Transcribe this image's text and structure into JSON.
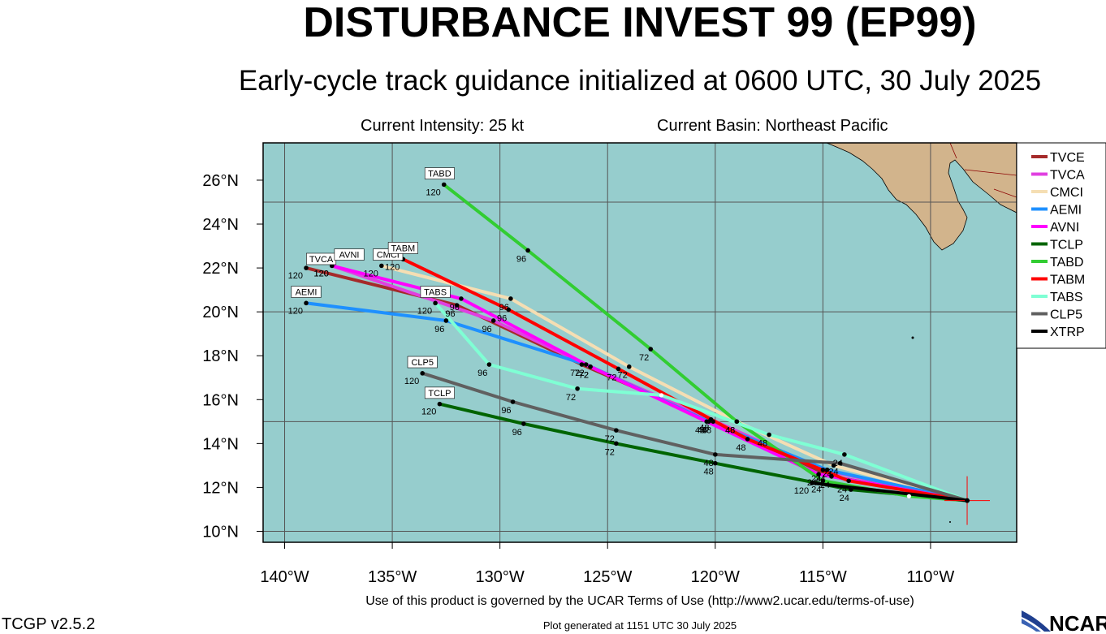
{
  "header": {
    "title": "DISTURBANCE INVEST 99 (EP99)",
    "subtitle": "Early-cycle track guidance initialized at 0600 UTC, 30 July 2025",
    "intensity": "Current Intensity: 25 kt",
    "basin": "Current Basin: Northeast Pacific"
  },
  "footer": {
    "terms": "Use of this product is governed by the UCAR Terms of Use (http://www2.ucar.edu/terms-of-use)",
    "version": "TCGP v2.5.2",
    "generated": "Plot generated at 1151 UTC  30 July 2025",
    "logo_text": "NCAR"
  },
  "colors": {
    "ocean": "#96cdcd",
    "land": "#d2b48c",
    "grid": "#555555"
  },
  "chart_data": {
    "type": "map-track",
    "lon_range": [
      -141,
      -106
    ],
    "lat_range": [
      9.5,
      27.7
    ],
    "x_ticks": [
      {
        "lon": -140,
        "label": "140°W"
      },
      {
        "lon": -135,
        "label": "135°W"
      },
      {
        "lon": -130,
        "label": "130°W"
      },
      {
        "lon": -125,
        "label": "125°W"
      },
      {
        "lon": -120,
        "label": "120°W"
      },
      {
        "lon": -115,
        "label": "115°W"
      },
      {
        "lon": -110,
        "label": "110°W"
      }
    ],
    "y_ticks": [
      {
        "lat": 10,
        "label": "10°N"
      },
      {
        "lat": 12,
        "label": "12°N"
      },
      {
        "lat": 14,
        "label": "14°N"
      },
      {
        "lat": 16,
        "label": "16°N"
      },
      {
        "lat": 18,
        "label": "18°N"
      },
      {
        "lat": 20,
        "label": "20°N"
      },
      {
        "lat": 22,
        "label": "22°N"
      },
      {
        "lat": 24,
        "label": "24°N"
      },
      {
        "lat": 26,
        "label": "26°N"
      }
    ],
    "grid_lons": [
      -140,
      -135,
      -130,
      -125,
      -120,
      -115,
      -110
    ],
    "grid_lats": [
      10,
      15,
      20,
      25
    ],
    "legend_position": "right",
    "current_position": {
      "lon": -108.3,
      "lat": 11.4
    },
    "series": [
      {
        "name": "TVCE",
        "color": "#a52a2a",
        "points": [
          [
            -108.3,
            11.4
          ],
          [
            -114.6,
            12.5
          ],
          [
            -120.1,
            15.0
          ],
          [
            -126.2,
            17.6
          ],
          [
            -132.0,
            20.3
          ],
          [
            -139.0,
            22.0
          ]
        ],
        "markers": [
          {
            "lon": -114.6,
            "lat": 12.5,
            "label": "24"
          },
          {
            "lon": -120.1,
            "lat": 15.0,
            "label": "48"
          },
          {
            "lon": -126.2,
            "lat": 17.6,
            "label": "72"
          },
          {
            "lon": -132.0,
            "lat": 20.3,
            "label": "96"
          }
        ],
        "end_label": "TVCA",
        "end_label_pos": [
          -138.3,
          22.3
        ]
      },
      {
        "name": "TVCA",
        "color": "#e040e0",
        "points": [
          [
            -108.3,
            11.4
          ],
          [
            -115.0,
            12.8
          ],
          [
            -120.2,
            15.1
          ],
          [
            -125.8,
            17.5
          ],
          [
            -130.3,
            19.6
          ],
          [
            -137.8,
            22.1
          ]
        ],
        "markers": [
          {
            "lon": -115.0,
            "lat": 12.8,
            "label": "24"
          },
          {
            "lon": -120.2,
            "lat": 15.1,
            "label": "48"
          },
          {
            "lon": -125.8,
            "lat": 17.5,
            "label": "72"
          },
          {
            "lon": -130.3,
            "lat": 19.6,
            "label": "96"
          }
        ],
        "end_label": "",
        "end_label_pos": [
          -137.8,
          22.1
        ]
      },
      {
        "name": "CMCI",
        "color": "#f5deb3",
        "points": [
          [
            -108.3,
            11.4
          ],
          [
            -114.5,
            13.0
          ],
          [
            -119.0,
            15.0
          ],
          [
            -124.0,
            17.5
          ],
          [
            -129.5,
            20.6
          ],
          [
            -135.5,
            22.1
          ]
        ],
        "markers": [
          {
            "lon": -114.5,
            "lat": 13.0,
            "label": "24"
          },
          {
            "lon": -119.0,
            "lat": 15.0,
            "label": "48"
          },
          {
            "lon": -124.0,
            "lat": 17.5,
            "label": "72"
          },
          {
            "lon": -129.5,
            "lat": 20.6,
            "label": "96"
          }
        ],
        "end_label": "CMCI",
        "end_label_pos": [
          -135.2,
          22.5
        ]
      },
      {
        "name": "AEMI",
        "color": "#1e90ff",
        "points": [
          [
            -108.3,
            11.4
          ],
          [
            -114.8,
            12.8
          ],
          [
            -120.3,
            15.0
          ],
          [
            -126.0,
            17.6
          ],
          [
            -132.5,
            19.6
          ],
          [
            -139.0,
            20.4
          ]
        ],
        "markers": [
          {
            "lon": -114.8,
            "lat": 12.8,
            "label": "24"
          },
          {
            "lon": -120.3,
            "lat": 15.0,
            "label": "48"
          },
          {
            "lon": -126.0,
            "lat": 17.6,
            "label": "72"
          },
          {
            "lon": -132.5,
            "lat": 19.6,
            "label": "96"
          }
        ],
        "end_label": "AEMI",
        "end_label_pos": [
          -139.0,
          20.8
        ]
      },
      {
        "name": "AVNI",
        "color": "#ff00ff",
        "points": [
          [
            -108.3,
            11.4
          ],
          [
            -115.2,
            12.6
          ],
          [
            -120.4,
            15.0
          ],
          [
            -125.8,
            17.5
          ],
          [
            -131.8,
            20.6
          ],
          [
            -137.8,
            22.1
          ]
        ],
        "markers": [
          {
            "lon": -115.2,
            "lat": 12.6,
            "label": "24"
          },
          {
            "lon": -120.4,
            "lat": 15.0,
            "label": "48"
          },
          {
            "lon": -125.8,
            "lat": 17.5,
            "label": "72"
          },
          {
            "lon": -131.8,
            "lat": 20.6,
            "label": "96"
          }
        ],
        "end_label": "AVNI",
        "end_label_pos": [
          -137.0,
          22.5
        ]
      },
      {
        "name": "TCLP",
        "color": "#006400",
        "points": [
          [
            -108.3,
            11.4
          ],
          [
            -113.7,
            11.9
          ],
          [
            -120.0,
            13.1
          ],
          [
            -124.6,
            14.0
          ],
          [
            -128.9,
            14.9
          ],
          [
            -132.8,
            15.8
          ]
        ],
        "markers": [
          {
            "lon": -113.7,
            "lat": 11.9,
            "label": "24"
          },
          {
            "lon": -120.0,
            "lat": 13.1,
            "label": "48"
          },
          {
            "lon": -124.6,
            "lat": 14.0,
            "label": "72"
          },
          {
            "lon": -128.9,
            "lat": 14.9,
            "label": "96"
          }
        ],
        "end_label": "TCLP",
        "end_label_pos": [
          -132.8,
          16.2
        ]
      },
      {
        "name": "TABD",
        "color": "#32cd32",
        "points": [
          [
            -108.3,
            11.4
          ],
          [
            -111.0,
            11.6
          ],
          [
            -115.0,
            12.3
          ],
          [
            -119.0,
            15.0
          ],
          [
            -123.0,
            18.3
          ],
          [
            -128.7,
            22.8
          ],
          [
            -132.6,
            25.8
          ]
        ],
        "markers": [
          {
            "lon": -115.0,
            "lat": 12.3,
            "label": "24"
          },
          {
            "lon": -119.0,
            "lat": 15.0,
            "label": "48"
          },
          {
            "lon": -123.0,
            "lat": 18.3,
            "label": "72"
          },
          {
            "lon": -128.7,
            "lat": 22.8,
            "label": "96"
          }
        ],
        "end_label": "TABD",
        "end_label_pos": [
          -132.8,
          26.2
        ]
      },
      {
        "name": "TABM",
        "color": "#ff0000",
        "points": [
          [
            -108.3,
            11.4
          ],
          [
            -113.8,
            12.3
          ],
          [
            -118.5,
            14.2
          ],
          [
            -124.5,
            17.4
          ],
          [
            -129.6,
            20.1
          ],
          [
            -134.5,
            22.4
          ]
        ],
        "markers": [
          {
            "lon": -113.8,
            "lat": 12.3,
            "label": "24"
          },
          {
            "lon": -118.5,
            "lat": 14.2,
            "label": "48"
          },
          {
            "lon": -124.5,
            "lat": 17.4,
            "label": "72"
          },
          {
            "lon": -129.6,
            "lat": 20.1,
            "label": "96"
          }
        ],
        "end_label": "TABM",
        "end_label_pos": [
          -134.5,
          22.8
        ]
      },
      {
        "name": "TABS",
        "color": "#7fffd4",
        "points": [
          [
            -108.3,
            11.4
          ],
          [
            -114.0,
            13.5
          ],
          [
            -117.5,
            14.4
          ],
          [
            -122.5,
            16.2
          ],
          [
            -126.4,
            16.5
          ],
          [
            -130.5,
            17.6
          ],
          [
            -133.0,
            20.4
          ]
        ],
        "markers": [
          {
            "lon": -114.0,
            "lat": 13.5,
            "label": "24"
          },
          {
            "lon": -117.5,
            "lat": 14.4,
            "label": "48"
          },
          {
            "lon": -126.4,
            "lat": 16.5,
            "label": "72"
          },
          {
            "lon": -130.5,
            "lat": 17.6,
            "label": "96"
          }
        ],
        "end_label": "TABS",
        "end_label_pos": [
          -133.0,
          20.8
        ]
      },
      {
        "name": "CLP5",
        "color": "#606060",
        "points": [
          [
            -108.3,
            11.4
          ],
          [
            -114.2,
            13.1
          ],
          [
            -120.0,
            13.5
          ],
          [
            -124.6,
            14.6
          ],
          [
            -129.4,
            15.9
          ],
          [
            -133.6,
            17.2
          ]
        ],
        "markers": [
          {
            "lon": -114.2,
            "lat": 13.1,
            "label": "24"
          },
          {
            "lon": -120.0,
            "lat": 13.5,
            "label": "48"
          },
          {
            "lon": -124.6,
            "lat": 14.6,
            "label": "72"
          },
          {
            "lon": -129.4,
            "lat": 15.9,
            "label": "96"
          }
        ],
        "end_label": "CLP5",
        "end_label_pos": [
          -133.6,
          17.6
        ]
      },
      {
        "name": "XTRP",
        "color": "#000000",
        "points": [
          [
            -108.3,
            11.4
          ],
          [
            -115.5,
            12.2
          ]
        ],
        "markers": [],
        "end_label": "",
        "end_label_pos": [
          -115.5,
          12.2
        ]
      }
    ]
  }
}
